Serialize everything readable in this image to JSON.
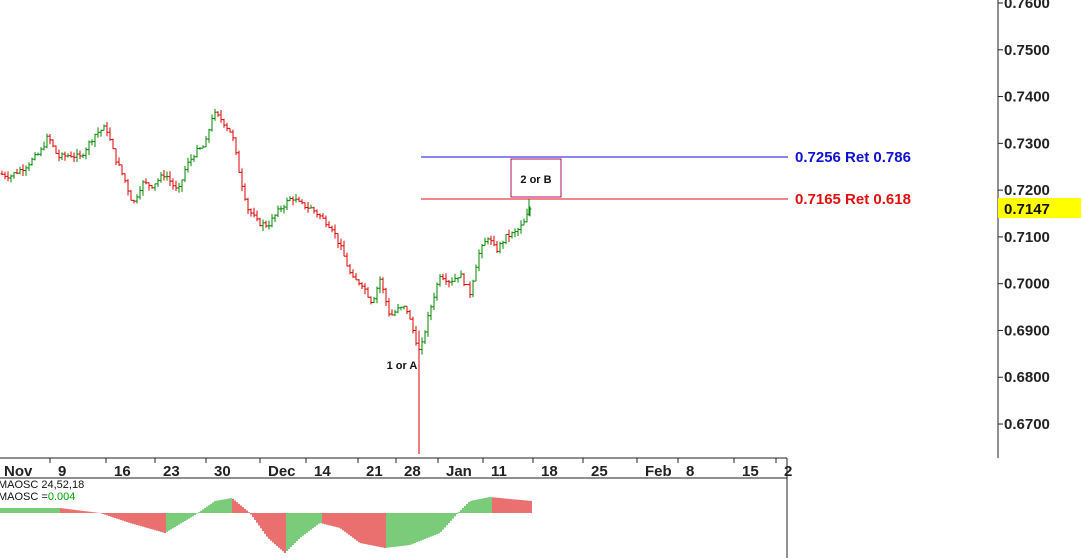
{
  "chart_data": {
    "type": "ohlc",
    "price_axis": {
      "ticks": [
        "0.7600",
        "0.7500",
        "0.7400",
        "0.7300",
        "0.7200",
        "0.7100",
        "0.7000",
        "0.6900",
        "0.6800",
        "0.6700"
      ],
      "range": [
        0.664,
        0.76
      ],
      "current_price": "0.7147",
      "current_price_color": "#ffff00"
    },
    "date_axis": {
      "ticks": [
        "Nov",
        "9",
        "16",
        "23",
        "30",
        "Dec",
        "14",
        "21",
        "28",
        "Jan",
        "11",
        "18",
        "25",
        "Feb",
        "8",
        "15",
        "2"
      ]
    },
    "levels": [
      {
        "label": "0.7256 Ret 0.786",
        "value": 0.7256,
        "color": "#1010d0"
      },
      {
        "label": "0.7165 Ret 0.618",
        "value": 0.7165,
        "color": "#e01010"
      }
    ],
    "annotations": {
      "wave_a": "1 or A",
      "wave_b": "2 or B"
    },
    "series": [
      {
        "date": "2015-10-30",
        "close": 0.725
      },
      {
        "date": "2015-11-04",
        "close": 0.724
      },
      {
        "date": "2015-11-09",
        "close": 0.73
      },
      {
        "date": "2015-11-12",
        "close": 0.727
      },
      {
        "date": "2015-11-16",
        "close": 0.733
      },
      {
        "date": "2015-11-18",
        "close": 0.718
      },
      {
        "date": "2015-11-23",
        "close": 0.721
      },
      {
        "date": "2015-11-27",
        "close": 0.725
      },
      {
        "date": "2015-11-30",
        "close": 0.729
      },
      {
        "date": "2015-12-02",
        "close": 0.736
      },
      {
        "date": "2015-12-05",
        "close": 0.726
      },
      {
        "date": "2015-12-07",
        "close": 0.716
      },
      {
        "date": "2015-12-10",
        "close": 0.712
      },
      {
        "date": "2015-12-14",
        "close": 0.718
      },
      {
        "date": "2015-12-18",
        "close": 0.712
      },
      {
        "date": "2015-12-21",
        "close": 0.702
      },
      {
        "date": "2015-12-24",
        "close": 0.696
      },
      {
        "date": "2015-12-28",
        "close": 0.692
      },
      {
        "date": "2015-12-31",
        "close": 0.688
      },
      {
        "date": "2016-01-02",
        "close": 0.69
      },
      {
        "date": "2016-01-05",
        "close": 0.7
      },
      {
        "date": "2016-01-08",
        "close": 0.699
      },
      {
        "date": "2016-01-11",
        "close": 0.708
      },
      {
        "date": "2016-01-14",
        "close": 0.709
      },
      {
        "date": "2016-01-17",
        "close": 0.715
      },
      {
        "date": "2016-01-18",
        "close": 0.7147
      }
    ],
    "oscillator": {
      "label_params": "MAOSC 24,52,18",
      "label_value_prefix": "MAOSC =",
      "label_value": "0.004",
      "value_color": "#00a000"
    }
  }
}
